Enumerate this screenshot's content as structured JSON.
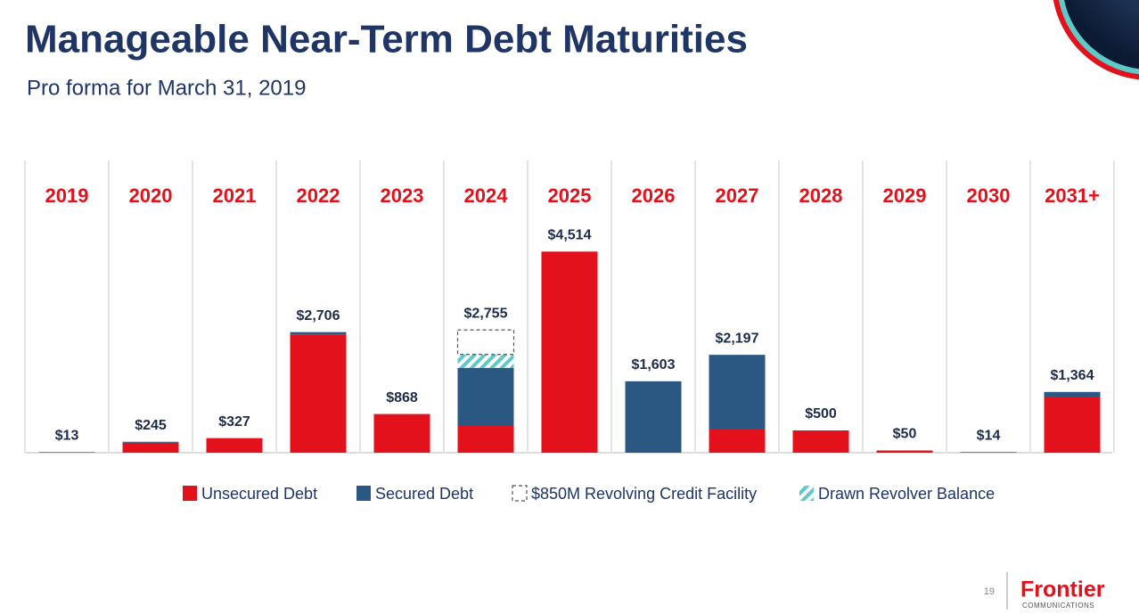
{
  "chart_data": {
    "type": "stacked-bar",
    "title": "Manageable Near-Term Debt Maturities",
    "subtitle": "Pro forma for March 31, 2019",
    "categories": [
      "2019",
      "2020",
      "2021",
      "2022",
      "2023",
      "2024",
      "2025",
      "2026",
      "2027",
      "2028",
      "2029",
      "2030",
      "2031+"
    ],
    "series": [
      {
        "name": "Unsecured Debt",
        "color": "#e3111b",
        "style": "solid",
        "values": [
          0,
          225,
          327,
          2656,
          868,
          600,
          4514,
          0,
          540,
          500,
          50,
          0,
          1240
        ]
      },
      {
        "name": "Secured Debt",
        "color": "#2b5783",
        "style": "solid",
        "values": [
          13,
          20,
          0,
          50,
          0,
          1305,
          0,
          1603,
          1657,
          0,
          0,
          14,
          124
        ]
      },
      {
        "name": "Drawn Revolver Balance",
        "color": "#5ec9c9",
        "style": "hatch",
        "values": [
          0,
          0,
          0,
          0,
          0,
          300,
          0,
          0,
          0,
          0,
          0,
          0,
          0
        ]
      },
      {
        "name": "$850M Revolving Credit Facility",
        "color": "#555555",
        "style": "dashed",
        "values": [
          0,
          0,
          0,
          0,
          0,
          550,
          0,
          0,
          0,
          0,
          0,
          0,
          0
        ]
      }
    ],
    "legend_order": [
      0,
      1,
      3,
      2
    ],
    "totals": {
      "values": [
        13,
        245,
        327,
        2706,
        868,
        2755,
        4514,
        1603,
        2197,
        500,
        50,
        14,
        1364
      ],
      "value_labels": [
        "$13",
        "$245",
        "$327",
        "$2,706",
        "$868",
        "$2,755",
        "$4,514",
        "$1,603",
        "$2,197",
        "$500",
        "$50",
        "$14",
        "$1,364"
      ]
    },
    "ylim": [
      0,
      5000
    ]
  },
  "footer": {
    "page": "19",
    "logo": "Frontier",
    "logo_sub": "COMMUNICATIONS"
  }
}
